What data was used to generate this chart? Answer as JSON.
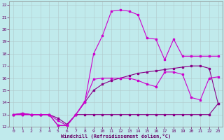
{
  "xlabel": "Windchill (Refroidissement éolien,°C)",
  "ylim": [
    12,
    22.3
  ],
  "xlim": [
    -0.5,
    23.5
  ],
  "yticks": [
    12,
    13,
    14,
    15,
    16,
    17,
    18,
    19,
    20,
    21,
    22
  ],
  "xticks": [
    0,
    1,
    2,
    3,
    4,
    5,
    6,
    7,
    8,
    9,
    10,
    11,
    12,
    13,
    14,
    15,
    16,
    17,
    18,
    19,
    20,
    21,
    22,
    23
  ],
  "bg_color": "#c0eaec",
  "line_color1": "#cc00cc",
  "line_color2": "#880088",
  "grid_color": "#b0c8ca",
  "lines": [
    {
      "x": [
        0,
        1,
        2,
        3,
        4,
        5,
        6,
        7,
        8,
        9,
        10,
        11,
        12,
        13,
        14,
        15,
        16,
        17,
        18,
        19,
        20,
        21,
        22,
        23
      ],
      "y": [
        13,
        13,
        13,
        13,
        13,
        12.1,
        12.1,
        13,
        13,
        13,
        13,
        13,
        13,
        13,
        13,
        13,
        13,
        13,
        13,
        13,
        13,
        13,
        13,
        13.9
      ],
      "color": "#880088"
    },
    {
      "x": [
        0,
        1,
        2,
        3,
        4,
        5,
        6,
        7,
        8,
        9,
        10,
        11,
        12,
        13,
        14,
        15,
        16,
        17,
        18,
        19,
        20,
        21,
        22,
        23
      ],
      "y": [
        13,
        13.1,
        13,
        13,
        13,
        12.7,
        12.2,
        13,
        14,
        15,
        15.5,
        15.8,
        16,
        16.2,
        16.4,
        16.5,
        16.6,
        16.7,
        16.8,
        16.9,
        17,
        17,
        16.8,
        13.9
      ],
      "color": "#880088"
    },
    {
      "x": [
        0,
        1,
        2,
        3,
        4,
        5,
        6,
        7,
        8,
        9,
        10,
        11,
        12,
        13,
        14,
        15,
        16,
        17,
        18,
        19,
        20,
        21,
        22,
        23
      ],
      "y": [
        13,
        13,
        13,
        13,
        13,
        12.5,
        12.1,
        13,
        14.1,
        15.9,
        16,
        16,
        16,
        16,
        15.8,
        15.5,
        15.3,
        16.5,
        16.5,
        16.3,
        14.4,
        14.2,
        16,
        16.1
      ],
      "color": "#cc00cc"
    },
    {
      "x": [
        0,
        1,
        2,
        3,
        4,
        5,
        6,
        7,
        8,
        9,
        10,
        11,
        12,
        13,
        14,
        15,
        16,
        17,
        18,
        19,
        20,
        21,
        22,
        23
      ],
      "y": [
        13,
        13.1,
        13,
        13,
        13,
        12.1,
        12.1,
        13,
        14,
        18,
        19.5,
        21.5,
        21.6,
        21.5,
        21.2,
        19.3,
        19.2,
        17.5,
        19.2,
        17.8,
        17.8,
        17.8,
        17.8,
        17.8
      ],
      "color": "#cc00cc"
    }
  ]
}
